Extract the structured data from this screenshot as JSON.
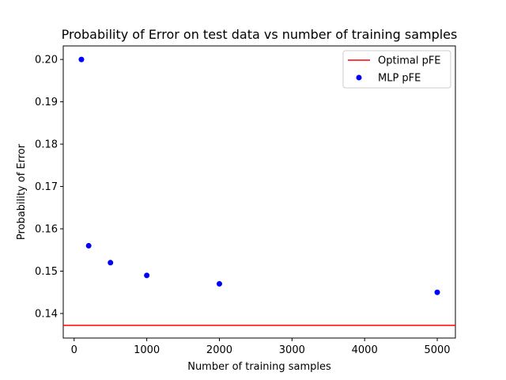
{
  "chart_data": {
    "type": "scatter",
    "title": "Probability of Error on test data vs number of training samples",
    "xlabel": "Number of training samples",
    "ylabel": "Probability of Error",
    "xlim": [
      -150,
      5250
    ],
    "ylim": [
      0.1342,
      0.2032
    ],
    "xticks": [
      0,
      1000,
      2000,
      3000,
      4000,
      5000
    ],
    "yticks": [
      0.14,
      0.15,
      0.16,
      0.17,
      0.18,
      0.19,
      0.2
    ],
    "xtick_labels": [
      "0",
      "1000",
      "2000",
      "3000",
      "4000",
      "5000"
    ],
    "ytick_labels": [
      "0.14",
      "0.15",
      "0.16",
      "0.17",
      "0.18",
      "0.19",
      "0.20"
    ],
    "grid": false,
    "legend_position": "top-right",
    "series": [
      {
        "name": "Optimal pFE",
        "kind": "hline",
        "color": "#ff0000",
        "y": 0.1372
      },
      {
        "name": "MLP pFE",
        "kind": "scatter",
        "color": "#0000ff",
        "x": [
          100,
          200,
          500,
          1000,
          2000,
          5000
        ],
        "y": [
          0.2,
          0.156,
          0.152,
          0.149,
          0.147,
          0.145
        ]
      }
    ]
  }
}
